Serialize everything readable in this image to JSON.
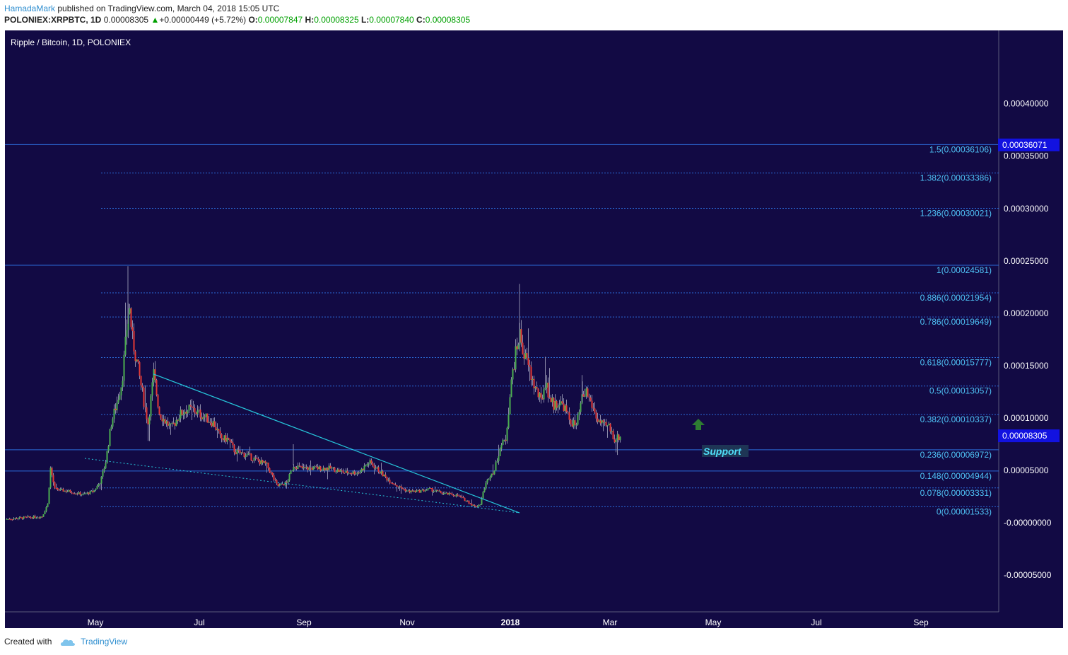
{
  "header": {
    "author": "HamadaMark",
    "published_text": "published on TradingView.com, March 04, 2018 15:05 UTC",
    "symbol": "POLONIEX:XRPBTC, 1D",
    "last_price": "0.00008305",
    "change": "+0.00000449 (+5.72%)",
    "open_label": "O:",
    "open": "0.00007847",
    "high_label": "H:",
    "high": "0.00008325",
    "low_label": "L:",
    "low": "0.00007840",
    "close_label": "C:",
    "close": "0.00008305"
  },
  "footer": {
    "created_with": "Created with",
    "brand": "TradingView"
  },
  "colors": {
    "background": "#120a44",
    "up": "#4caf50",
    "down": "#e53935",
    "fib_line": "#2b6ad8",
    "fib_label": "#4fc3f7",
    "trendline": "#26c6da",
    "price_badge": "#1212e0",
    "support_arrow": "#2e7d32"
  },
  "chart_data": {
    "type": "candlestick",
    "title": "Ripple / Bitcoin, 1D, POLONIEX",
    "x_ticks": [
      "May",
      "Jul",
      "Sep",
      "Nov",
      "2018",
      "Mar",
      "May",
      "Jul",
      "Sep"
    ],
    "y_ticks": [
      "0.00040000",
      "0.00035000",
      "0.00030000",
      "0.00025000",
      "0.00020000",
      "0.00015000",
      "0.00010000",
      "0.00005000",
      "-0.00000000",
      "-0.00005000"
    ],
    "y_tick_values": [
      0.0004,
      0.00035,
      0.0003,
      0.00025,
      0.0002,
      0.00015,
      0.0001,
      5e-05,
      0,
      -5e-05
    ],
    "ylim": [
      -8.5e-05,
      0.00047
    ],
    "fib_levels": [
      {
        "label": "1.5(0.00036106)",
        "value": 0.00036106
      },
      {
        "label": "1.382(0.00033386)",
        "value": 0.00033386
      },
      {
        "label": "1.236(0.00030021)",
        "value": 0.00030021
      },
      {
        "label": "1(0.00024581)",
        "value": 0.00024581
      },
      {
        "label": "0.886(0.00021954)",
        "value": 0.00021954
      },
      {
        "label": "0.786(0.00019649)",
        "value": 0.00019649
      },
      {
        "label": "0.618(0.00015777)",
        "value": 0.00015777
      },
      {
        "label": "0.5(0.00013057)",
        "value": 0.00013057
      },
      {
        "label": "0.382(0.00010337)",
        "value": 0.00010337
      },
      {
        "label": "0.236(0.00006972)",
        "value": 6.972e-05
      },
      {
        "label": "0.148(0.00004944)",
        "value": 4.944e-05
      },
      {
        "label": "0.078(0.00003331)",
        "value": 3.331e-05
      },
      {
        "label": "0(0.00001533)",
        "value": 1.533e-05
      }
    ],
    "price_badges": [
      {
        "label": "0.00036071",
        "value": 0.00036071
      },
      {
        "label": "0.00008305",
        "value": 8.305e-05
      }
    ],
    "annotation": {
      "text": "Support"
    },
    "price_path": [
      [
        0,
        3.5e-06
      ],
      [
        52,
        6e-06
      ],
      [
        60,
        1.8e-05
      ],
      [
        64,
        5.2e-05
      ],
      [
        70,
        3.2e-05
      ],
      [
        90,
        3e-05
      ],
      [
        110,
        2.7e-05
      ],
      [
        125,
        3e-05
      ],
      [
        135,
        4e-05
      ],
      [
        142,
        5.8e-05
      ],
      [
        150,
        9.5e-05
      ],
      [
        158,
        0.000115
      ],
      [
        165,
        0.000135
      ],
      [
        170,
        0.00017
      ],
      [
        175,
        0.00021
      ],
      [
        180,
        0.000175
      ],
      [
        187,
        0.00015
      ],
      [
        195,
        0.00012
      ],
      [
        202,
        9.5e-05
      ],
      [
        210,
        0.000142
      ],
      [
        218,
        0.000105
      ],
      [
        225,
        9.8e-05
      ],
      [
        235,
        9e-05
      ],
      [
        245,
        0.000102
      ],
      [
        255,
        0.000108
      ],
      [
        265,
        0.000108
      ],
      [
        280,
        0.000102
      ],
      [
        295,
        9.5e-05
      ],
      [
        305,
        8e-05
      ],
      [
        315,
        8e-05
      ],
      [
        325,
        6.8e-05
      ],
      [
        340,
        6.5e-05
      ],
      [
        355,
        6e-05
      ],
      [
        370,
        5.5e-05
      ],
      [
        385,
        3.5e-05
      ],
      [
        398,
        3.8e-05
      ],
      [
        408,
        5.5e-05
      ],
      [
        420,
        5.2e-05
      ],
      [
        440,
        5.2e-05
      ],
      [
        460,
        5.2e-05
      ],
      [
        480,
        4.8e-05
      ],
      [
        500,
        4.8e-05
      ],
      [
        515,
        5.8e-05
      ],
      [
        525,
        5.2e-05
      ],
      [
        540,
        4.2e-05
      ],
      [
        555,
        3.5e-05
      ],
      [
        570,
        3e-05
      ],
      [
        585,
        3e-05
      ],
      [
        600,
        3.2e-05
      ],
      [
        620,
        2.8e-05
      ],
      [
        640,
        2.6e-05
      ],
      [
        655,
        2e-05
      ],
      [
        665,
        1.5e-05
      ],
      [
        672,
        1.8e-05
      ],
      [
        678,
        3.4e-05
      ],
      [
        685,
        4.5e-05
      ],
      [
        692,
        5e-05
      ],
      [
        700,
        7.2e-05
      ],
      [
        708,
        8e-05
      ],
      [
        713,
        0.000115
      ],
      [
        718,
        0.000145
      ],
      [
        723,
        0.000165
      ],
      [
        728,
        0.00018
      ],
      [
        734,
        0.00016
      ],
      [
        740,
        0.00015
      ],
      [
        746,
        0.000135
      ],
      [
        752,
        0.000125
      ],
      [
        758,
        0.000115
      ],
      [
        764,
        0.000135
      ],
      [
        770,
        0.00012
      ],
      [
        776,
        0.000112
      ],
      [
        782,
        0.000115
      ],
      [
        790,
        0.000112
      ],
      [
        798,
        9.8e-05
      ],
      [
        808,
        9.2e-05
      ],
      [
        816,
        0.000118
      ],
      [
        822,
        0.000125
      ],
      [
        830,
        0.000112
      ],
      [
        838,
        9.8e-05
      ],
      [
        846,
        9.2e-05
      ],
      [
        854,
        9.2e-05
      ],
      [
        862,
        8e-05
      ],
      [
        870,
        8.25e-05
      ]
    ],
    "trendlines": [
      {
        "style": "solid",
        "from": [
          210,
          0.000142
        ],
        "to": [
          728,
          9.5e-06
        ]
      },
      {
        "style": "dotted",
        "from": [
          113,
          6.15e-05
        ],
        "to": [
          728,
          9.5e-06
        ]
      }
    ]
  }
}
